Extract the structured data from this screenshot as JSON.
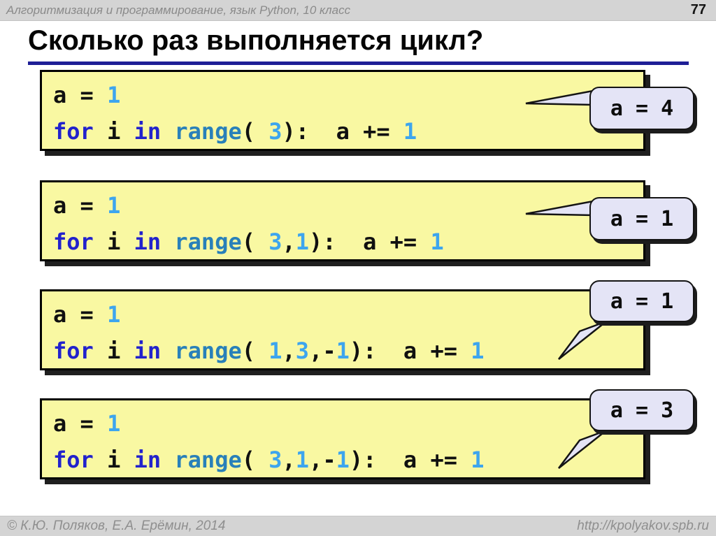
{
  "header": {
    "course_title": "Алгоритмизация и программирование, язык Python, 10 класс",
    "page_number": "77"
  },
  "title": "Сколько раз выполняется цикл?",
  "examples": [
    {
      "answer": "a = 4",
      "line1": [
        {
          "c": "pl",
          "v": "a = "
        },
        {
          "c": "num",
          "v": "1"
        }
      ],
      "line2": [
        {
          "c": "kw",
          "v": "for"
        },
        {
          "c": "pl",
          "v": " i "
        },
        {
          "c": "kw",
          "v": "in"
        },
        {
          "c": "pl",
          "v": " "
        },
        {
          "c": "fn",
          "v": "range"
        },
        {
          "c": "pl",
          "v": "( "
        },
        {
          "c": "num",
          "v": "3"
        },
        {
          "c": "pl",
          "v": "):  a += "
        },
        {
          "c": "num",
          "v": "1"
        }
      ]
    },
    {
      "answer": "a = 1",
      "line1": [
        {
          "c": "pl",
          "v": "a = "
        },
        {
          "c": "num",
          "v": "1"
        }
      ],
      "line2": [
        {
          "c": "kw",
          "v": "for"
        },
        {
          "c": "pl",
          "v": " i "
        },
        {
          "c": "kw",
          "v": "in"
        },
        {
          "c": "pl",
          "v": " "
        },
        {
          "c": "fn",
          "v": "range"
        },
        {
          "c": "pl",
          "v": "( "
        },
        {
          "c": "num",
          "v": "3"
        },
        {
          "c": "pl",
          "v": ","
        },
        {
          "c": "num",
          "v": "1"
        },
        {
          "c": "pl",
          "v": "):  a += "
        },
        {
          "c": "num",
          "v": "1"
        }
      ]
    },
    {
      "answer": "a = 1",
      "line1": [
        {
          "c": "pl",
          "v": "a = "
        },
        {
          "c": "num",
          "v": "1"
        }
      ],
      "line2": [
        {
          "c": "kw",
          "v": "for"
        },
        {
          "c": "pl",
          "v": " i "
        },
        {
          "c": "kw",
          "v": "in"
        },
        {
          "c": "pl",
          "v": " "
        },
        {
          "c": "fn",
          "v": "range"
        },
        {
          "c": "pl",
          "v": "( "
        },
        {
          "c": "num",
          "v": "1"
        },
        {
          "c": "pl",
          "v": ","
        },
        {
          "c": "num",
          "v": "3"
        },
        {
          "c": "pl",
          "v": ",-"
        },
        {
          "c": "num",
          "v": "1"
        },
        {
          "c": "pl",
          "v": "):  a += "
        },
        {
          "c": "num",
          "v": "1"
        }
      ]
    },
    {
      "answer": "a = 3",
      "line1": [
        {
          "c": "pl",
          "v": "a = "
        },
        {
          "c": "num",
          "v": "1"
        }
      ],
      "line2": [
        {
          "c": "kw",
          "v": "for"
        },
        {
          "c": "pl",
          "v": " i "
        },
        {
          "c": "kw",
          "v": "in"
        },
        {
          "c": "pl",
          "v": " "
        },
        {
          "c": "fn",
          "v": "range"
        },
        {
          "c": "pl",
          "v": "( "
        },
        {
          "c": "num",
          "v": "3"
        },
        {
          "c": "pl",
          "v": ","
        },
        {
          "c": "num",
          "v": "1"
        },
        {
          "c": "pl",
          "v": ",-"
        },
        {
          "c": "num",
          "v": "1"
        },
        {
          "c": "pl",
          "v": "):  a += "
        },
        {
          "c": "num",
          "v": "1"
        }
      ]
    }
  ],
  "footer": {
    "copyright": "© К.Ю. Поляков, Е.А. Ерёмин, 2014",
    "url": "http://kpolyakov.spb.ru"
  },
  "colors": {
    "bar_background": "#d4d4d4",
    "bar_text": "#8a8a8a",
    "title_underline": "#1f1f96",
    "code_box_fill": "#f9f8a2",
    "callout_fill": "#e4e4f6",
    "keyword_blue": "#2222cc",
    "builtin_blue": "#2980b9",
    "number_blue": "#3da5ee"
  }
}
